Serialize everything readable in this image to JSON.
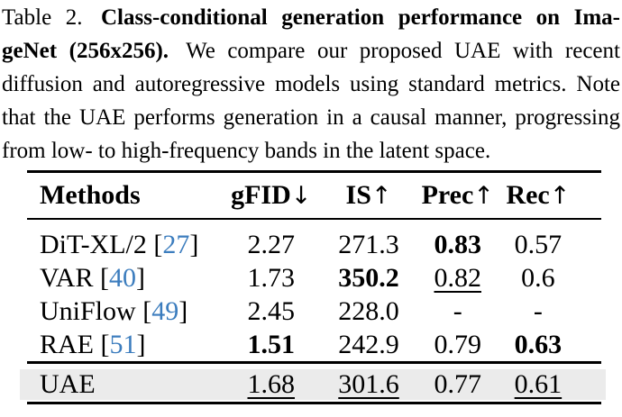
{
  "caption": {
    "label": "Table 2.",
    "title_line1": "Class-conditional generation performance on Ima-",
    "title_line2": "geNet (256x256).",
    "text_line2": "We compare our proposed UAE with recent",
    "text_line3": "diffusion and autoregressive models using standard metrics. Note",
    "text_line4": "that the UAE performs generation in a causal manner, progressing",
    "text_line5": "from low- to high-frequency bands in the latent space."
  },
  "table": {
    "columns": [
      {
        "label": "Methods",
        "arrow": ""
      },
      {
        "label": "gFID",
        "arrow": "↓"
      },
      {
        "label": "IS",
        "arrow": "↑"
      },
      {
        "label": "Prec",
        "arrow": "↑"
      },
      {
        "label": "Rec",
        "arrow": "↑"
      }
    ],
    "rows": [
      {
        "method": "DiT-XL/2",
        "cite": "27",
        "values": [
          {
            "text": "2.27",
            "style": "plain"
          },
          {
            "text": "271.3",
            "style": "plain"
          },
          {
            "text": "0.83",
            "style": "bold"
          },
          {
            "text": "0.57",
            "style": "plain"
          }
        ]
      },
      {
        "method": "VAR",
        "cite": "40",
        "values": [
          {
            "text": "1.73",
            "style": "plain"
          },
          {
            "text": "350.2",
            "style": "bold"
          },
          {
            "text": "0.82",
            "style": "underline"
          },
          {
            "text": "0.6",
            "style": "plain"
          }
        ]
      },
      {
        "method": "UniFlow",
        "cite": "49",
        "values": [
          {
            "text": "2.45",
            "style": "plain"
          },
          {
            "text": "228.0",
            "style": "plain"
          },
          {
            "text": "-",
            "style": "plain"
          },
          {
            "text": "-",
            "style": "plain"
          }
        ]
      },
      {
        "method": "RAE",
        "cite": "51",
        "values": [
          {
            "text": "1.51",
            "style": "bold"
          },
          {
            "text": "242.9",
            "style": "plain"
          },
          {
            "text": "0.79",
            "style": "plain"
          },
          {
            "text": "0.63",
            "style": "bold"
          }
        ]
      }
    ],
    "highlight_row": {
      "method": "UAE",
      "cite": "",
      "values": [
        {
          "text": "1.68",
          "style": "underline"
        },
        {
          "text": "301.6",
          "style": "underline"
        },
        {
          "text": "0.77",
          "style": "plain"
        },
        {
          "text": "0.61",
          "style": "underline"
        }
      ]
    },
    "colors": {
      "citation": "#3c7dbe",
      "highlight_bg": "#ebebeb",
      "rule": "#000000"
    }
  }
}
